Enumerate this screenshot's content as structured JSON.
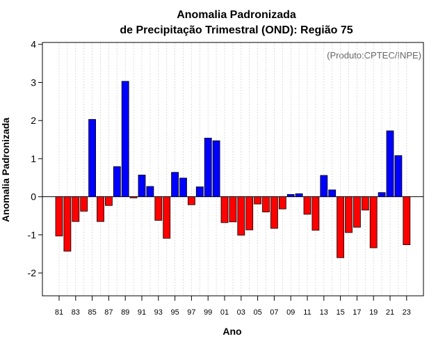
{
  "chart_data": {
    "type": "bar",
    "title": "Anomalia Padronizada",
    "subtitle": "de Precipitação Trimestral (OND): Região 75",
    "xlabel": "Ano",
    "ylabel": "Anomalia Padronizada",
    "credit": "(Produto:CPTEC/INPE)",
    "ylim": [
      -2.6,
      4.05
    ],
    "yticks": [
      "-2",
      "-1",
      "0",
      "1",
      "2",
      "3",
      "4"
    ],
    "categories": [
      "81",
      "82",
      "83",
      "84",
      "85",
      "86",
      "87",
      "88",
      "89",
      "90",
      "91",
      "92",
      "93",
      "94",
      "95",
      "96",
      "97",
      "98",
      "99",
      "00",
      "01",
      "02",
      "03",
      "04",
      "05",
      "06",
      "07",
      "08",
      "09",
      "10",
      "11",
      "12",
      "13",
      "14",
      "15",
      "16",
      "17",
      "18",
      "19",
      "20",
      "21",
      "22",
      "23"
    ],
    "x_tick_labels": [
      "81",
      "83",
      "85",
      "87",
      "89",
      "91",
      "93",
      "95",
      "97",
      "99",
      "01",
      "03",
      "05",
      "07",
      "09",
      "11",
      "13",
      "15",
      "17",
      "19",
      "21",
      "23"
    ],
    "values": [
      -1.03,
      -1.43,
      -0.65,
      -0.38,
      2.03,
      -0.65,
      -0.23,
      0.79,
      3.03,
      -0.03,
      0.57,
      0.27,
      -0.62,
      -1.09,
      0.64,
      0.49,
      -0.21,
      0.26,
      1.54,
      1.47,
      -0.68,
      -0.66,
      -1.01,
      -0.87,
      -0.19,
      -0.4,
      -0.83,
      -0.32,
      0.06,
      0.08,
      -0.46,
      -0.88,
      0.56,
      0.18,
      -1.6,
      -0.94,
      -0.8,
      -0.35,
      -1.34,
      0.11,
      1.73,
      1.08,
      -1.26
    ],
    "positive_color": "#0000ff",
    "negative_color": "#ff0000",
    "grid": true
  }
}
